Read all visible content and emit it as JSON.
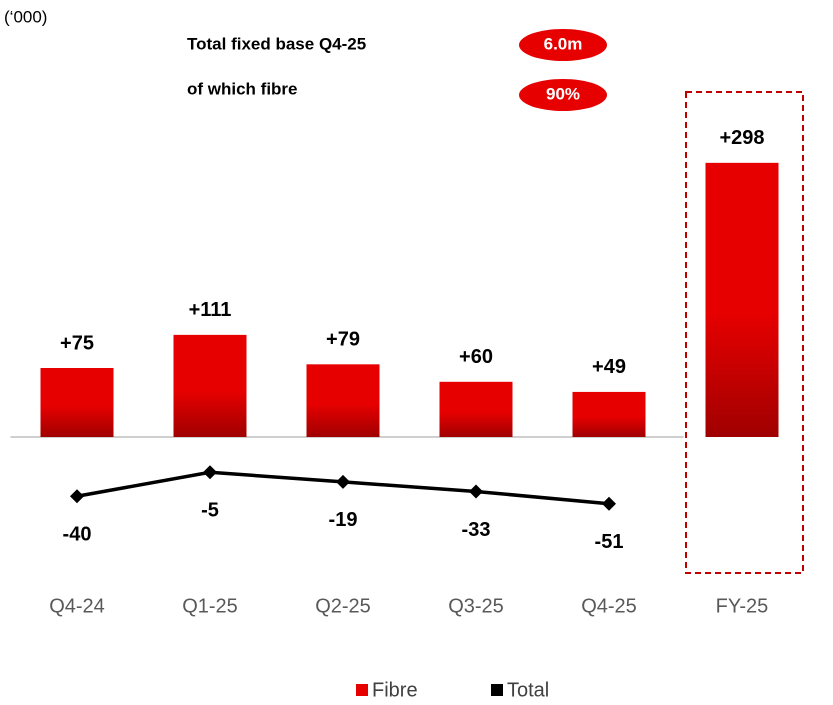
{
  "chart_data": {
    "type": "bar",
    "unit_label": "(‘000)",
    "annotations": [
      {
        "text": "Total fixed base Q4-25",
        "badge": "6.0m"
      },
      {
        "text": "of which fibre",
        "badge": "90%"
      }
    ],
    "categories": [
      "Q4-24",
      "Q1-25",
      "Q2-25",
      "Q3-25",
      "Q4-25",
      "FY-25"
    ],
    "ylim": [
      -150,
      330
    ],
    "y2lim": [
      -155,
      490
    ],
    "series": [
      {
        "name": "Fibre",
        "type": "bar",
        "color": "#e60000",
        "values": [
          75,
          111,
          79,
          60,
          49,
          298
        ],
        "value_labels": [
          "+75",
          "+111",
          "+79",
          "+60",
          "+49",
          "+298"
        ]
      },
      {
        "name": "Total",
        "type": "line",
        "axis": "y2",
        "color": "#000000",
        "values": [
          -40,
          -5,
          -19,
          -33,
          -51,
          null
        ]
      }
    ],
    "legend": "bottom"
  }
}
